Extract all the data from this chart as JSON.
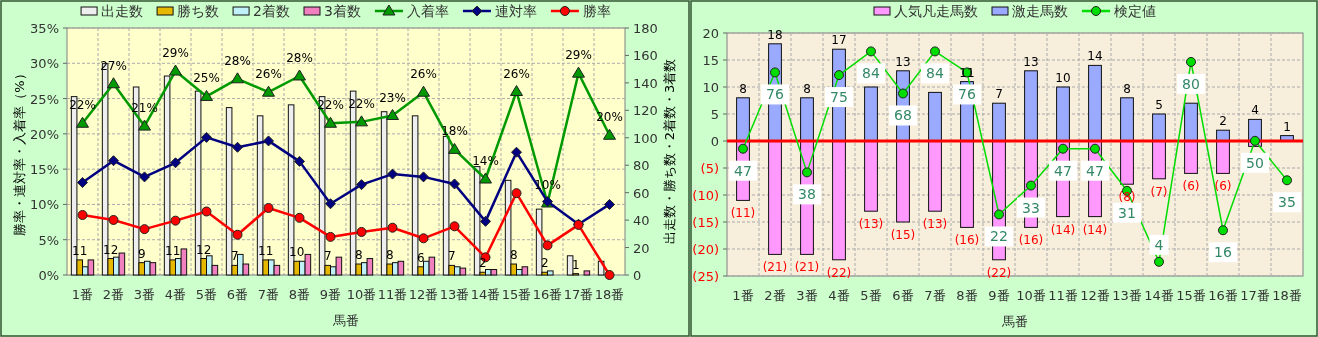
{
  "chart_data": [
    {
      "type": "bar",
      "categories": [
        "1番",
        "2番",
        "3番",
        "4番",
        "5番",
        "6番",
        "7番",
        "8番",
        "9番",
        "10番",
        "11番",
        "12番",
        "13番",
        "14番",
        "15番",
        "16番",
        "17番",
        "18番"
      ],
      "xlabel": "馬番",
      "ylabel": "勝率・連対率・入着率（%）",
      "y2label": "出走数・勝ち数・2着数・3着数",
      "ylim": [
        0,
        35
      ],
      "yticks": [
        {
          "value": 0,
          "label": "0%"
        },
        {
          "value": 5,
          "label": "5%"
        },
        {
          "value": 10,
          "label": "10%"
        },
        {
          "value": 15,
          "label": "15%"
        },
        {
          "value": 20,
          "label": "20%"
        },
        {
          "value": 25,
          "label": "25%"
        },
        {
          "value": 30,
          "label": "30%"
        },
        {
          "value": 35,
          "label": "35%"
        }
      ],
      "y2lim": [
        0,
        180
      ],
      "y2ticks": [
        0,
        20,
        40,
        60,
        80,
        100,
        120,
        140,
        160,
        180
      ],
      "grid": true,
      "legend": "top",
      "series": [
        {
          "name": "出走数",
          "axis": "y2",
          "color": "#eeeeee",
          "values": [
            130,
            154,
            137,
            145,
            134,
            122,
            116,
            124,
            130,
            134,
            119,
            116,
            101,
            79,
            69,
            48,
            14,
            10
          ]
        },
        {
          "name": "勝ち数",
          "axis": "y2",
          "color": "#e6b800",
          "values": [
            11,
            12,
            9,
            11,
            12,
            7,
            11,
            10,
            7,
            8,
            8,
            6,
            7,
            2,
            8,
            2,
            1,
            0
          ],
          "value_labels": [
            "11",
            "12",
            "9",
            "11",
            "12",
            "7",
            "11",
            "10",
            "7",
            "8",
            "8",
            "6",
            "7",
            "2",
            "8",
            "2",
            "1",
            null
          ]
        },
        {
          "name": "2着数",
          "axis": "y2",
          "color": "#c0f0f8",
          "values": [
            6,
            13,
            10,
            12,
            14,
            15,
            11,
            10,
            6,
            9,
            9,
            10,
            6,
            4,
            4,
            3,
            0,
            0
          ]
        },
        {
          "name": "3着数",
          "axis": "y2",
          "color": "#f080c0",
          "values": [
            11,
            16,
            9,
            19,
            7,
            8,
            7,
            15,
            13,
            12,
            10,
            13,
            5,
            4,
            6,
            0,
            3,
            0
          ]
        },
        {
          "name": "入着率",
          "type": "line",
          "color": "#009900",
          "marker": "triangle",
          "values": [
            21.5,
            27.1,
            21.1,
            28.9,
            25.3,
            27.8,
            25.9,
            28.2,
            21.5,
            21.7,
            22.6,
            25.9,
            17.8,
            13.6,
            26.0,
            10.2,
            28.6,
            19.8
          ],
          "value_labels": [
            "22%",
            "27%",
            "21%",
            "29%",
            "25%",
            "28%",
            "26%",
            "28%",
            "22%",
            "22%",
            "23%",
            "26%",
            "18%",
            "14%",
            "26%",
            "10%",
            "29%",
            "20%"
          ]
        },
        {
          "name": "連対率",
          "type": "line",
          "color": "#000080",
          "marker": "diamond",
          "values": [
            13.1,
            16.2,
            13.9,
            15.9,
            19.5,
            18.1,
            19.0,
            16.1,
            10.1,
            12.8,
            14.3,
            13.9,
            12.9,
            7.6,
            17.4,
            10.4,
            7.2,
            10.0
          ]
        },
        {
          "name": "勝率",
          "type": "line",
          "color": "#ff0000",
          "marker": "circle",
          "values": [
            8.5,
            7.8,
            6.5,
            7.7,
            9.0,
            5.7,
            9.5,
            8.1,
            5.4,
            6.1,
            6.7,
            5.2,
            6.9,
            2.5,
            11.6,
            4.2,
            7.1,
            0
          ]
        }
      ]
    },
    {
      "type": "bar",
      "categories": [
        "1番",
        "2番",
        "3番",
        "4番",
        "5番",
        "6番",
        "7番",
        "8番",
        "9番",
        "10番",
        "11番",
        "12番",
        "13番",
        "14番",
        "15番",
        "16番",
        "17番",
        "18番"
      ],
      "xlabel": "馬番",
      "ylim": [
        -25,
        20
      ],
      "yticks": [
        {
          "value": -25,
          "label": "(25)"
        },
        {
          "value": -20,
          "label": "(20)"
        },
        {
          "value": -15,
          "label": "(15)"
        },
        {
          "value": -10,
          "label": "(10)"
        },
        {
          "value": -5,
          "label": "(5)"
        },
        0,
        5,
        10,
        15,
        20
      ],
      "y2lim": [
        -1.4,
        91
      ],
      "grid": true,
      "legend": "top",
      "stacked": true,
      "ref_lines": [
        {
          "axis": "y",
          "value": 0,
          "color": "#ff0000"
        }
      ],
      "series": [
        {
          "name": "人気凡走馬数",
          "color": "#ff99ff",
          "values": [
            -11,
            -21,
            -21,
            -22,
            -13,
            -15,
            -13,
            -16,
            -22,
            -16,
            -14,
            -14,
            -8,
            -7,
            -6,
            -6,
            -1,
            0
          ],
          "value_labels": [
            "(11)",
            "(21)",
            "(21)",
            "(22)",
            "(13)",
            "(15)",
            "(13)",
            "(16)",
            "(22)",
            "(16)",
            "(14)",
            "(14)",
            "(8)",
            "(7)",
            "(6)",
            "(6)",
            null,
            null
          ]
        },
        {
          "name": "激走馬数",
          "color": "#99aaff",
          "values": [
            8,
            18,
            8,
            17,
            10,
            13,
            9,
            11,
            7,
            13,
            10,
            14,
            8,
            5,
            7,
            2,
            4,
            1
          ],
          "value_labels": [
            "8",
            "18",
            "8",
            "17",
            null,
            "13",
            null,
            "11",
            "7",
            "13",
            "10",
            "14",
            "8",
            "5",
            null,
            "2",
            "4",
            "1"
          ]
        },
        {
          "name": "検定値",
          "type": "line",
          "axis": "y2",
          "color": "#00dd00",
          "marker": "circle",
          "values": [
            47,
            76,
            38,
            75,
            84,
            68,
            84,
            76,
            22,
            33,
            47,
            47,
            31,
            4,
            80,
            16,
            50,
            35
          ],
          "value_labels": [
            "47",
            "76",
            "38",
            "75",
            "84",
            "68",
            "84",
            "76",
            "22",
            "33",
            "47",
            "47",
            "31",
            "4",
            "80",
            "16",
            "50",
            "35"
          ]
        }
      ]
    }
  ]
}
